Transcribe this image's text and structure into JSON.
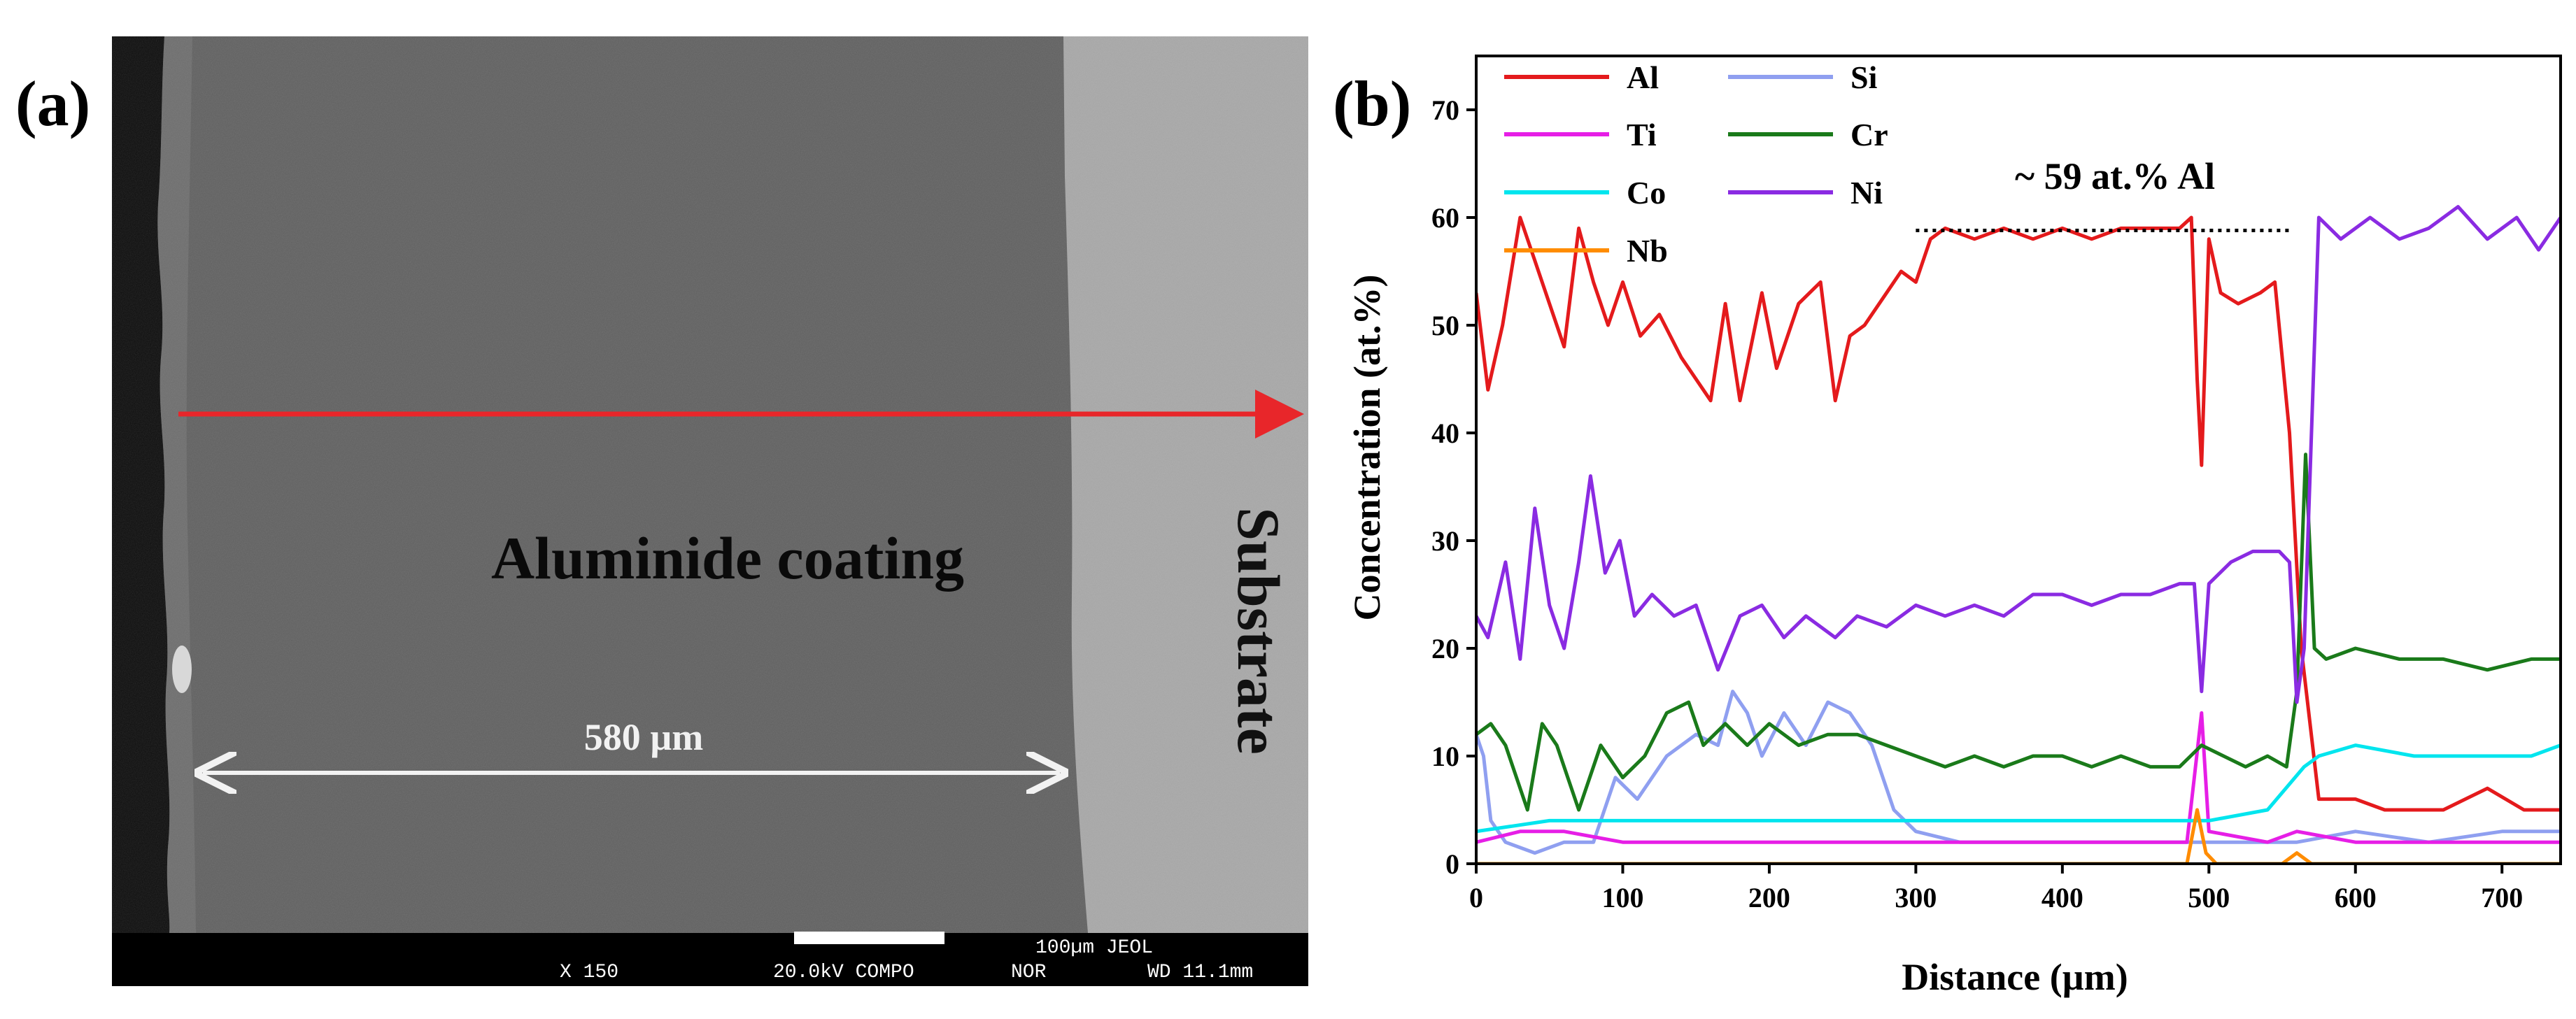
{
  "panel_a": {
    "label": "(a)",
    "coating_label": "Aluminide coating",
    "substrate_label": "Substrate",
    "thickness_label": "580 µm",
    "info_bar": {
      "scale": "100µm JEOL",
      "magnification": "X 150",
      "voltage_mode": "20.0kV COMPO",
      "nor": "NOR",
      "wd": "WD 11.1mm"
    },
    "colors": {
      "arrow": "#e8262a",
      "coating": "#5e5e5e",
      "substrate": "#a6a6a6",
      "edge": "#0a0a0a"
    }
  },
  "panel_b": {
    "label": "(b)",
    "annotation": "~ 59 at.% Al"
  },
  "chart_data": {
    "type": "line",
    "xlabel": "Distance (µm)",
    "ylabel": "Concentration (at.%)",
    "xlim": [
      0,
      740
    ],
    "ylim": [
      0,
      75
    ],
    "xticks": [
      0,
      100,
      200,
      300,
      400,
      500,
      600,
      700
    ],
    "yticks": [
      0,
      10,
      20,
      30,
      40,
      50,
      60,
      70
    ],
    "legend": "top-left, two columns",
    "reference_line": {
      "x": [
        300,
        555
      ],
      "y": 58.8,
      "style": "dotted"
    },
    "series": [
      {
        "name": "Al",
        "color": "#e41a1c",
        "points": [
          [
            0,
            53
          ],
          [
            8,
            44
          ],
          [
            18,
            50
          ],
          [
            30,
            60
          ],
          [
            40,
            56
          ],
          [
            50,
            52
          ],
          [
            60,
            48
          ],
          [
            70,
            59
          ],
          [
            80,
            54
          ],
          [
            90,
            50
          ],
          [
            100,
            54
          ],
          [
            112,
            49
          ],
          [
            125,
            51
          ],
          [
            140,
            47
          ],
          [
            160,
            43
          ],
          [
            170,
            52
          ],
          [
            180,
            43
          ],
          [
            195,
            53
          ],
          [
            205,
            46
          ],
          [
            220,
            52
          ],
          [
            235,
            54
          ],
          [
            245,
            43
          ],
          [
            255,
            49
          ],
          [
            265,
            50
          ],
          [
            280,
            53
          ],
          [
            290,
            55
          ],
          [
            300,
            54
          ],
          [
            310,
            58
          ],
          [
            320,
            59
          ],
          [
            340,
            58
          ],
          [
            360,
            59
          ],
          [
            380,
            58
          ],
          [
            400,
            59
          ],
          [
            420,
            58
          ],
          [
            440,
            59
          ],
          [
            460,
            59
          ],
          [
            480,
            59
          ],
          [
            488,
            60
          ],
          [
            492,
            45
          ],
          [
            495,
            37
          ],
          [
            500,
            58
          ],
          [
            508,
            53
          ],
          [
            520,
            52
          ],
          [
            535,
            53
          ],
          [
            545,
            54
          ],
          [
            555,
            40
          ],
          [
            563,
            20
          ],
          [
            575,
            6
          ],
          [
            600,
            6
          ],
          [
            620,
            5
          ],
          [
            660,
            5
          ],
          [
            690,
            7
          ],
          [
            715,
            5
          ],
          [
            740,
            5
          ]
        ]
      },
      {
        "name": "Si",
        "color": "#8f9ff0",
        "points": [
          [
            0,
            12
          ],
          [
            5,
            10
          ],
          [
            10,
            4
          ],
          [
            20,
            2
          ],
          [
            40,
            1
          ],
          [
            60,
            2
          ],
          [
            80,
            2
          ],
          [
            95,
            8
          ],
          [
            110,
            6
          ],
          [
            130,
            10
          ],
          [
            150,
            12
          ],
          [
            165,
            11
          ],
          [
            175,
            16
          ],
          [
            185,
            14
          ],
          [
            195,
            10
          ],
          [
            210,
            14
          ],
          [
            225,
            11
          ],
          [
            240,
            15
          ],
          [
            255,
            14
          ],
          [
            270,
            11
          ],
          [
            285,
            5
          ],
          [
            300,
            3
          ],
          [
            330,
            2
          ],
          [
            360,
            2
          ],
          [
            400,
            2
          ],
          [
            440,
            2
          ],
          [
            480,
            2
          ],
          [
            520,
            2
          ],
          [
            560,
            2
          ],
          [
            600,
            3
          ],
          [
            650,
            2
          ],
          [
            700,
            3
          ],
          [
            740,
            3
          ]
        ]
      },
      {
        "name": "Ti",
        "color": "#e61ee6",
        "points": [
          [
            0,
            2
          ],
          [
            30,
            3
          ],
          [
            60,
            3
          ],
          [
            100,
            2
          ],
          [
            150,
            2
          ],
          [
            200,
            2
          ],
          [
            250,
            2
          ],
          [
            300,
            2
          ],
          [
            350,
            2
          ],
          [
            400,
            2
          ],
          [
            450,
            2
          ],
          [
            485,
            2
          ],
          [
            490,
            8
          ],
          [
            495,
            14
          ],
          [
            500,
            3
          ],
          [
            540,
            2
          ],
          [
            560,
            3
          ],
          [
            600,
            2
          ],
          [
            650,
            2
          ],
          [
            700,
            2
          ],
          [
            740,
            2
          ]
        ]
      },
      {
        "name": "Cr",
        "color": "#1a7a1a",
        "points": [
          [
            0,
            12
          ],
          [
            10,
            13
          ],
          [
            20,
            11
          ],
          [
            35,
            5
          ],
          [
            45,
            13
          ],
          [
            55,
            11
          ],
          [
            70,
            5
          ],
          [
            85,
            11
          ],
          [
            100,
            8
          ],
          [
            115,
            10
          ],
          [
            130,
            14
          ],
          [
            145,
            15
          ],
          [
            155,
            11
          ],
          [
            170,
            13
          ],
          [
            185,
            11
          ],
          [
            200,
            13
          ],
          [
            220,
            11
          ],
          [
            240,
            12
          ],
          [
            260,
            12
          ],
          [
            280,
            11
          ],
          [
            300,
            10
          ],
          [
            320,
            9
          ],
          [
            340,
            10
          ],
          [
            360,
            9
          ],
          [
            380,
            10
          ],
          [
            400,
            10
          ],
          [
            420,
            9
          ],
          [
            440,
            10
          ],
          [
            460,
            9
          ],
          [
            480,
            9
          ],
          [
            495,
            11
          ],
          [
            510,
            10
          ],
          [
            525,
            9
          ],
          [
            540,
            10
          ],
          [
            553,
            9
          ],
          [
            560,
            16
          ],
          [
            566,
            38
          ],
          [
            572,
            20
          ],
          [
            580,
            19
          ],
          [
            600,
            20
          ],
          [
            630,
            19
          ],
          [
            660,
            19
          ],
          [
            690,
            18
          ],
          [
            720,
            19
          ],
          [
            740,
            19
          ]
        ]
      },
      {
        "name": "Co",
        "color": "#00e5ee",
        "points": [
          [
            0,
            3
          ],
          [
            50,
            4
          ],
          [
            100,
            4
          ],
          [
            150,
            4
          ],
          [
            200,
            4
          ],
          [
            250,
            4
          ],
          [
            300,
            4
          ],
          [
            350,
            4
          ],
          [
            400,
            4
          ],
          [
            450,
            4
          ],
          [
            500,
            4
          ],
          [
            540,
            5
          ],
          [
            565,
            9
          ],
          [
            575,
            10
          ],
          [
            600,
            11
          ],
          [
            640,
            10
          ],
          [
            680,
            10
          ],
          [
            720,
            10
          ],
          [
            740,
            11
          ]
        ]
      },
      {
        "name": "Ni",
        "color": "#8a2be2",
        "points": [
          [
            0,
            23
          ],
          [
            8,
            21
          ],
          [
            20,
            28
          ],
          [
            30,
            19
          ],
          [
            40,
            33
          ],
          [
            50,
            24
          ],
          [
            60,
            20
          ],
          [
            70,
            28
          ],
          [
            78,
            36
          ],
          [
            88,
            27
          ],
          [
            98,
            30
          ],
          [
            108,
            23
          ],
          [
            120,
            25
          ],
          [
            135,
            23
          ],
          [
            150,
            24
          ],
          [
            165,
            18
          ],
          [
            180,
            23
          ],
          [
            195,
            24
          ],
          [
            210,
            21
          ],
          [
            225,
            23
          ],
          [
            245,
            21
          ],
          [
            260,
            23
          ],
          [
            280,
            22
          ],
          [
            300,
            24
          ],
          [
            320,
            23
          ],
          [
            340,
            24
          ],
          [
            360,
            23
          ],
          [
            380,
            25
          ],
          [
            400,
            25
          ],
          [
            420,
            24
          ],
          [
            440,
            25
          ],
          [
            460,
            25
          ],
          [
            480,
            26
          ],
          [
            490,
            26
          ],
          [
            495,
            16
          ],
          [
            500,
            26
          ],
          [
            515,
            28
          ],
          [
            530,
            29
          ],
          [
            548,
            29
          ],
          [
            555,
            28
          ],
          [
            560,
            15
          ],
          [
            565,
            20
          ],
          [
            575,
            60
          ],
          [
            590,
            58
          ],
          [
            610,
            60
          ],
          [
            630,
            58
          ],
          [
            650,
            59
          ],
          [
            670,
            61
          ],
          [
            690,
            58
          ],
          [
            710,
            60
          ],
          [
            725,
            57
          ],
          [
            740,
            60
          ]
        ]
      },
      {
        "name": "Nb",
        "color": "#ff8c00",
        "points": [
          [
            0,
            0
          ],
          [
            100,
            0
          ],
          [
            200,
            0
          ],
          [
            300,
            0
          ],
          [
            400,
            0
          ],
          [
            485,
            0
          ],
          [
            492,
            5
          ],
          [
            498,
            1
          ],
          [
            505,
            0
          ],
          [
            550,
            0
          ],
          [
            560,
            1
          ],
          [
            570,
            0
          ],
          [
            600,
            0
          ],
          [
            650,
            0
          ],
          [
            700,
            0
          ],
          [
            740,
            0
          ]
        ]
      }
    ]
  }
}
